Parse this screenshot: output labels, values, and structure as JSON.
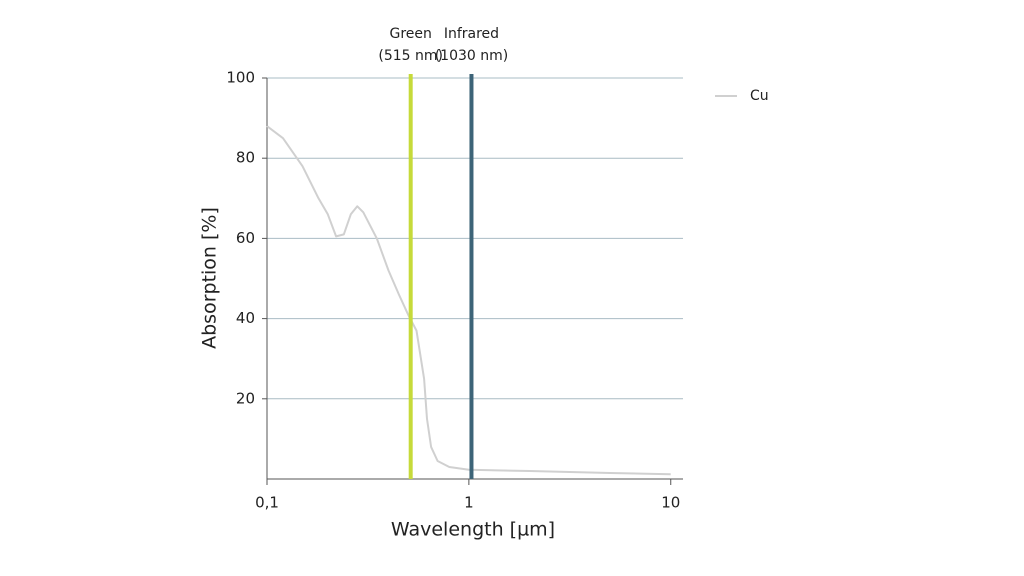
{
  "chart_data": {
    "type": "line",
    "x_label": "Wavelength [µm]",
    "y_label": "Absorption [%]",
    "x": [
      0.1,
      0.12,
      0.15,
      0.18,
      0.2,
      0.22,
      0.24,
      0.26,
      0.28,
      0.3,
      0.35,
      0.4,
      0.45,
      0.5,
      0.55,
      0.6,
      0.62,
      0.65,
      0.7,
      0.8,
      1,
      2,
      5,
      10
    ],
    "series": [
      {
        "name": "Cu",
        "color": "#d0d0d0",
        "values": [
          88,
          85,
          78,
          70,
          66,
          60.5,
          61,
          66,
          68,
          66.5,
          60,
          52,
          46,
          41,
          37,
          25,
          15,
          8,
          4.5,
          3,
          2.3,
          2.0,
          1.5,
          1.2
        ]
      }
    ],
    "xlim": [
      0.1,
      11.5
    ],
    "xscale": "log",
    "xticks": [
      {
        "value": 0.1,
        "label": "0,1"
      },
      1,
      10
    ],
    "ylim": [
      0,
      100
    ],
    "yticks": [
      20,
      40,
      60,
      80,
      100
    ],
    "grid": true,
    "grid_color": "#a9bcc4",
    "legend": "right",
    "annotations": [
      {
        "x": 0.515,
        "label": "Green",
        "sublabel": "(515 nm)",
        "color": "#c6da3a"
      },
      {
        "x": 1.03,
        "label": "Infrared",
        "sublabel": "(1030 nm)",
        "color": "#3d6478"
      }
    ]
  }
}
